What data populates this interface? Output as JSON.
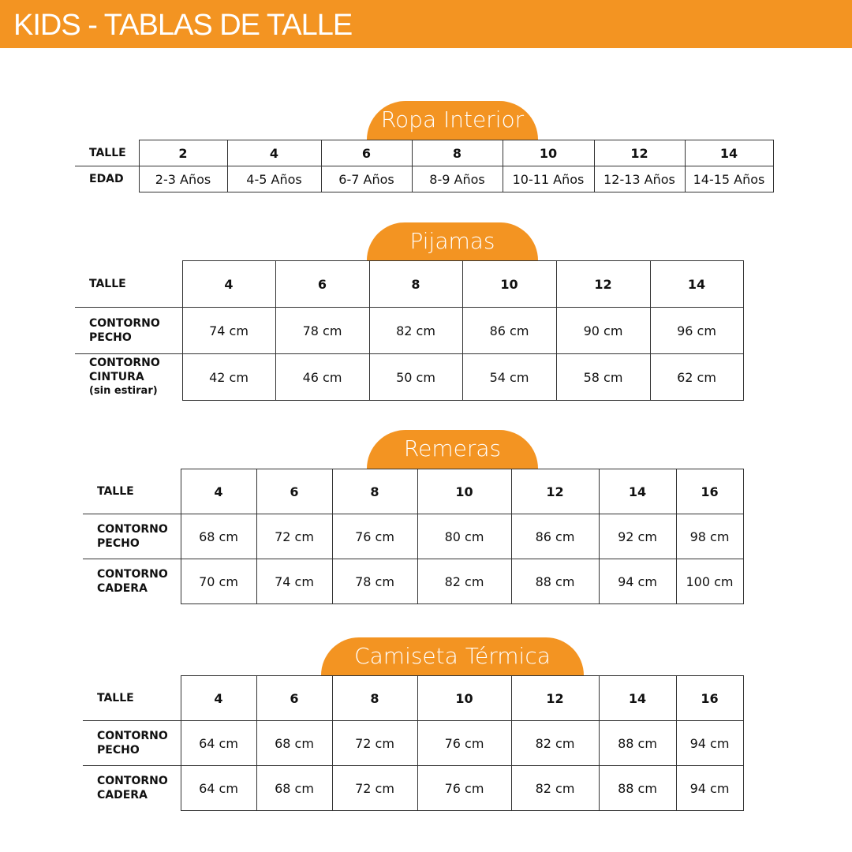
{
  "title": "KIDS - TABLAS DE TALLE",
  "accent_color": "#f39422",
  "sections": [
    {
      "title": "Ropa Interior",
      "rows": [
        {
          "label": [
            "TALLE"
          ],
          "cells": [
            "2",
            "4",
            "6",
            "8",
            "10",
            "12",
            "14"
          ]
        },
        {
          "label": [
            "EDAD"
          ],
          "cells": [
            "2-3 Años",
            "4-5 Años",
            "6-7 Años",
            "8-9 Años",
            "10-11 Años",
            "12-13 Años",
            "14-15 Años"
          ]
        }
      ]
    },
    {
      "title": "Pijamas",
      "rows": [
        {
          "label": [
            "TALLE"
          ],
          "cells": [
            "4",
            "6",
            "8",
            "10",
            "12",
            "14"
          ]
        },
        {
          "label": [
            "CONTORNO",
            "PECHO"
          ],
          "cells": [
            "74 cm",
            "78 cm",
            "82 cm",
            "86 cm",
            "90 cm",
            "96 cm"
          ]
        },
        {
          "label": [
            "CONTORNO",
            "CINTURA",
            "(sin estirar)"
          ],
          "cells": [
            "42 cm",
            "46 cm",
            "50 cm",
            "54 cm",
            "58 cm",
            "62 cm"
          ]
        }
      ]
    },
    {
      "title": "Remeras",
      "rows": [
        {
          "label": [
            "TALLE"
          ],
          "cells": [
            "4",
            "6",
            "8",
            "10",
            "12",
            "14",
            "16"
          ]
        },
        {
          "label": [
            "CONTORNO",
            "PECHO"
          ],
          "cells": [
            "68 cm",
            "72 cm",
            "76 cm",
            "80 cm",
            "86 cm",
            "92 cm",
            "98 cm"
          ]
        },
        {
          "label": [
            "CONTORNO",
            "CADERA"
          ],
          "cells": [
            "70 cm",
            "74 cm",
            "78 cm",
            "82 cm",
            "88 cm",
            "94 cm",
            "100 cm"
          ]
        }
      ]
    },
    {
      "title": "Camiseta Térmica",
      "rows": [
        {
          "label": [
            "TALLE"
          ],
          "cells": [
            "4",
            "6",
            "8",
            "10",
            "12",
            "14",
            "16"
          ]
        },
        {
          "label": [
            "CONTORNO",
            "PECHO"
          ],
          "cells": [
            "64 cm",
            "68 cm",
            "72 cm",
            "76 cm",
            "82 cm",
            "88 cm",
            "94 cm"
          ]
        },
        {
          "label": [
            "CONTORNO",
            "CADERA"
          ],
          "cells": [
            "64 cm",
            "68 cm",
            "72 cm",
            "76 cm",
            "82 cm",
            "88 cm",
            "94 cm"
          ]
        }
      ]
    }
  ]
}
